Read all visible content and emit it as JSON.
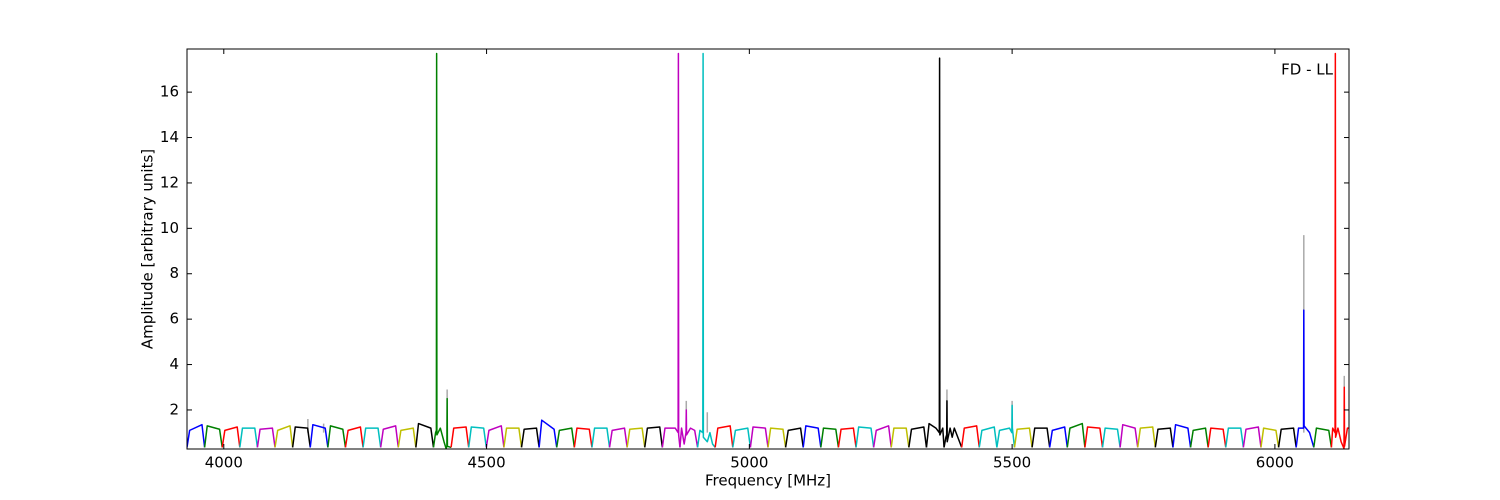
{
  "chart_data": {
    "type": "line",
    "xlabel": "Frequency [MHz]",
    "ylabel": "Amplitude [arbitrary units]",
    "annotation": "FD - LL",
    "xlim": [
      3930,
      6141
    ],
    "ylim": [
      0.28,
      17.9
    ],
    "xticks": [
      4000,
      4500,
      5000,
      5500,
      6000
    ],
    "yticks": [
      2,
      4,
      6,
      8,
      10,
      12,
      14,
      16
    ],
    "series": [
      {
        "color": "#aaaaaa",
        "x": [
          4160,
          4160,
          4160,
          4190,
          4190,
          4190,
          4425,
          4425,
          4425,
          4880,
          4880,
          4880,
          4920,
          4920,
          4920,
          5376,
          5376,
          5376,
          5500,
          5500,
          5500,
          6055,
          6055,
          6055,
          6132,
          6132
        ],
        "values": [
          1.0,
          1.6,
          null,
          1.0,
          1.4,
          null,
          1.0,
          2.9,
          null,
          1.0,
          2.4,
          null,
          1.0,
          1.9,
          null,
          1.0,
          2.9,
          null,
          1.0,
          2.4,
          null,
          1.0,
          9.7,
          null,
          1.0,
          3.5
        ]
      },
      {
        "color": "#0000ff",
        "x": [
          3930,
          3935,
          3958.5,
          3963.5
        ],
        "values": [
          0.35,
          1.1,
          1.35,
          0.35
        ]
      },
      {
        "color": "#008000",
        "x": [
          3963.5,
          3968.5,
          3992,
          3997
        ],
        "values": [
          0.35,
          1.3,
          1.15,
          0.35
        ]
      },
      {
        "color": "#ff0000",
        "x": [
          3997,
          4002,
          4025.5,
          4030.5
        ],
        "values": [
          0.35,
          1.1,
          1.25,
          0.35
        ]
      },
      {
        "color": "#00bfbf",
        "x": [
          4030.5,
          4035.5,
          4059,
          4064
        ],
        "values": [
          0.35,
          1.2,
          1.2,
          0.35
        ]
      },
      {
        "color": "#bf00bf",
        "x": [
          4064,
          4069,
          4092.5,
          4097.5
        ],
        "values": [
          0.35,
          1.15,
          1.2,
          0.35
        ]
      },
      {
        "color": "#bfbf00",
        "x": [
          4097.5,
          4102.5,
          4126,
          4131
        ],
        "values": [
          0.35,
          1.1,
          1.3,
          0.35
        ]
      },
      {
        "color": "#000000",
        "x": [
          4131,
          4136,
          4159.5,
          4164.5
        ],
        "values": [
          0.35,
          1.25,
          1.2,
          0.35
        ]
      },
      {
        "color": "#0000ff",
        "x": [
          4164.5,
          4169.5,
          4193,
          4198
        ],
        "values": [
          0.35,
          1.35,
          1.2,
          0.35
        ]
      },
      {
        "color": "#008000",
        "x": [
          4198,
          4203,
          4226.5,
          4231.5
        ],
        "values": [
          0.35,
          1.3,
          1.15,
          0.35
        ]
      },
      {
        "color": "#ff0000",
        "x": [
          4231.5,
          4236.5,
          4260,
          4265
        ],
        "values": [
          0.35,
          1.1,
          1.25,
          0.35
        ]
      },
      {
        "color": "#00bfbf",
        "x": [
          4265,
          4270,
          4293.5,
          4298.5
        ],
        "values": [
          0.35,
          1.2,
          1.2,
          0.35
        ]
      },
      {
        "color": "#bf00bf",
        "x": [
          4298.5,
          4303.5,
          4327,
          4332
        ],
        "values": [
          0.35,
          1.15,
          1.3,
          0.35
        ]
      },
      {
        "color": "#bfbf00",
        "x": [
          4332,
          4337,
          4360.5,
          4365.5
        ],
        "values": [
          0.35,
          1.1,
          1.2,
          0.35
        ]
      },
      {
        "color": "#000000",
        "x": [
          4365.5,
          4370.5,
          4394,
          4399
        ],
        "values": [
          0.35,
          1.4,
          1.2,
          0.35
        ]
      },
      {
        "color": "#008000",
        "x": [
          4399,
          4403,
          4404.5,
          4405,
          4405.5,
          4412,
          4419,
          4423,
          4424.5,
          4425,
          4425.5,
          4432.5
        ],
        "values": [
          0.35,
          1.0,
          1.1,
          17.7,
          0.9,
          1.2,
          0.6,
          0.3,
          0.4,
          2.5,
          0.4,
          0.35
        ]
      },
      {
        "color": "#ff0000",
        "x": [
          4432.5,
          4437.5,
          4461,
          4466
        ],
        "values": [
          0.35,
          1.2,
          1.25,
          0.35
        ]
      },
      {
        "color": "#00bfbf",
        "x": [
          4466,
          4471,
          4494.5,
          4499.5
        ],
        "values": [
          0.35,
          1.25,
          1.2,
          0.35
        ]
      },
      {
        "color": "#bf00bf",
        "x": [
          4499.5,
          4504.5,
          4528,
          4533
        ],
        "values": [
          0.35,
          1.1,
          1.3,
          0.35
        ]
      },
      {
        "color": "#bfbf00",
        "x": [
          4533,
          4538,
          4561.5,
          4566.5
        ],
        "values": [
          0.35,
          1.2,
          1.2,
          0.35
        ]
      },
      {
        "color": "#000000",
        "x": [
          4566.5,
          4571.5,
          4595,
          4600
        ],
        "values": [
          0.35,
          1.15,
          1.2,
          0.35
        ]
      },
      {
        "color": "#0000ff",
        "x": [
          4600,
          4605,
          4628.5,
          4633.5
        ],
        "values": [
          0.35,
          1.55,
          1.15,
          0.35
        ]
      },
      {
        "color": "#008000",
        "x": [
          4633.5,
          4638.5,
          4662,
          4667
        ],
        "values": [
          0.35,
          1.1,
          1.2,
          0.35
        ]
      },
      {
        "color": "#ff0000",
        "x": [
          4667,
          4672,
          4695.5,
          4700.5
        ],
        "values": [
          0.35,
          1.2,
          1.15,
          0.35
        ]
      },
      {
        "color": "#00bfbf",
        "x": [
          4700.5,
          4705.5,
          4729,
          4734
        ],
        "values": [
          0.35,
          1.2,
          1.2,
          0.35
        ]
      },
      {
        "color": "#bf00bf",
        "x": [
          4734,
          4739,
          4762.5,
          4767.5
        ],
        "values": [
          0.35,
          1.1,
          1.2,
          0.35
        ]
      },
      {
        "color": "#bfbf00",
        "x": [
          4767.5,
          4772.5,
          4796,
          4801
        ],
        "values": [
          0.35,
          1.15,
          1.2,
          0.35
        ]
      },
      {
        "color": "#000000",
        "x": [
          4801,
          4806,
          4829.5,
          4834.5
        ],
        "values": [
          0.35,
          1.2,
          1.25,
          0.35
        ]
      },
      {
        "color": "#bf00bf",
        "x": [
          4834.5,
          4839.5,
          4859,
          4864.5,
          4865,
          4865.5,
          4868
        ],
        "values": [
          0.35,
          1.2,
          1.2,
          1.0,
          17.7,
          0.9,
          0.35
        ]
      },
      {
        "color": "#bf00bf",
        "x": [
          4868,
          4871,
          4876,
          4879.5,
          4880,
          4880.5,
          4888,
          4896,
          4901.5
        ],
        "values": [
          0.35,
          1.2,
          0.5,
          1.0,
          2.0,
          0.9,
          1.2,
          1.1,
          0.35
        ]
      },
      {
        "color": "#00bfbf",
        "x": [
          4901.5,
          4906,
          4911.5,
          4912,
          4912.5,
          4920,
          4925,
          4930,
          4935
        ],
        "values": [
          0.35,
          1.1,
          1.0,
          17.7,
          0.8,
          0.6,
          1.0,
          0.5,
          0.35
        ]
      },
      {
        "color": "#ff0000",
        "x": [
          4935,
          4940,
          4963.5,
          4968.5
        ],
        "values": [
          0.35,
          1.2,
          1.3,
          0.35
        ]
      },
      {
        "color": "#00bfbf",
        "x": [
          4968.5,
          4973.5,
          4997,
          5002
        ],
        "values": [
          0.35,
          1.1,
          1.2,
          0.35
        ]
      },
      {
        "color": "#bf00bf",
        "x": [
          5002,
          5007,
          5030.5,
          5035.5
        ],
        "values": [
          0.35,
          1.25,
          1.2,
          0.35
        ]
      },
      {
        "color": "#bfbf00",
        "x": [
          5035.5,
          5040.5,
          5064,
          5069
        ],
        "values": [
          0.35,
          1.2,
          1.15,
          0.35
        ]
      },
      {
        "color": "#000000",
        "x": [
          5069,
          5074,
          5097.5,
          5102.5
        ],
        "values": [
          0.35,
          1.1,
          1.2,
          0.35
        ]
      },
      {
        "color": "#0000ff",
        "x": [
          5102.5,
          5107.5,
          5131,
          5136
        ],
        "values": [
          0.35,
          1.3,
          1.2,
          0.35
        ]
      },
      {
        "color": "#008000",
        "x": [
          5136,
          5141,
          5164.5,
          5169.5
        ],
        "values": [
          0.35,
          1.2,
          1.15,
          0.35
        ]
      },
      {
        "color": "#ff0000",
        "x": [
          5169.5,
          5174.5,
          5198,
          5203
        ],
        "values": [
          0.35,
          1.15,
          1.2,
          0.35
        ]
      },
      {
        "color": "#00bfbf",
        "x": [
          5203,
          5208,
          5231.5,
          5236.5
        ],
        "values": [
          0.35,
          1.25,
          1.2,
          0.35
        ]
      },
      {
        "color": "#bf00bf",
        "x": [
          5236.5,
          5241.5,
          5265,
          5270
        ],
        "values": [
          0.35,
          1.1,
          1.3,
          0.35
        ]
      },
      {
        "color": "#bfbf00",
        "x": [
          5270,
          5275,
          5298.5,
          5303.5
        ],
        "values": [
          0.35,
          1.2,
          1.2,
          0.35
        ]
      },
      {
        "color": "#000000",
        "x": [
          5303.5,
          5308.5,
          5332,
          5337
        ],
        "values": [
          0.35,
          1.15,
          1.25,
          0.35
        ]
      },
      {
        "color": "#000000",
        "x": [
          5337,
          5342,
          5355,
          5361.5,
          5362,
          5362.5,
          5368,
          5370.5
        ],
        "values": [
          0.35,
          1.4,
          1.2,
          1.0,
          17.5,
          0.9,
          1.2,
          0.35
        ]
      },
      {
        "color": "#000000",
        "x": [
          5370.5,
          5374,
          5375.5,
          5376,
          5376.5,
          5382,
          5386,
          5390,
          5404
        ],
        "values": [
          0.35,
          0.8,
          0.9,
          2.4,
          0.6,
          1.2,
          0.8,
          1.2,
          0.35
        ]
      },
      {
        "color": "#ff0000",
        "x": [
          5404,
          5409,
          5432.5,
          5437.5
        ],
        "values": [
          0.35,
          1.2,
          1.3,
          0.35
        ]
      },
      {
        "color": "#00bfbf",
        "x": [
          5437.5,
          5442.5,
          5466,
          5471
        ],
        "values": [
          0.35,
          1.1,
          1.25,
          0.35
        ]
      },
      {
        "color": "#00bfbf",
        "x": [
          5471,
          5476,
          5495,
          5499.5,
          5500,
          5500.5,
          5504.5
        ],
        "values": [
          0.35,
          1.1,
          1.2,
          1.0,
          2.2,
          1.2,
          0.35
        ]
      },
      {
        "color": "#bfbf00",
        "x": [
          5504.5,
          5509.5,
          5533,
          5538
        ],
        "values": [
          0.35,
          1.15,
          1.2,
          0.35
        ]
      },
      {
        "color": "#000000",
        "x": [
          5538,
          5543,
          5566.5,
          5571.5
        ],
        "values": [
          0.35,
          1.2,
          1.2,
          0.35
        ]
      },
      {
        "color": "#0000ff",
        "x": [
          5571.5,
          5576.5,
          5600,
          5605
        ],
        "values": [
          0.35,
          1.1,
          1.25,
          0.35
        ]
      },
      {
        "color": "#008000",
        "x": [
          5605,
          5610,
          5633.5,
          5638.5
        ],
        "values": [
          0.35,
          1.2,
          1.4,
          0.35
        ]
      },
      {
        "color": "#ff0000",
        "x": [
          5638.5,
          5643.5,
          5667,
          5672
        ],
        "values": [
          0.35,
          1.25,
          1.2,
          0.35
        ]
      },
      {
        "color": "#00bfbf",
        "x": [
          5672,
          5677,
          5700.5,
          5705.5
        ],
        "values": [
          0.35,
          1.2,
          1.15,
          0.35
        ]
      },
      {
        "color": "#bf00bf",
        "x": [
          5705.5,
          5710.5,
          5734,
          5739
        ],
        "values": [
          0.35,
          1.35,
          1.2,
          0.35
        ]
      },
      {
        "color": "#bfbf00",
        "x": [
          5739,
          5744,
          5767.5,
          5772.5
        ],
        "values": [
          0.35,
          1.2,
          1.25,
          0.35
        ]
      },
      {
        "color": "#000000",
        "x": [
          5772.5,
          5777.5,
          5801,
          5806
        ],
        "values": [
          0.35,
          1.15,
          1.2,
          0.35
        ]
      },
      {
        "color": "#0000ff",
        "x": [
          5806,
          5811,
          5834.5,
          5839.5
        ],
        "values": [
          0.35,
          1.35,
          1.2,
          0.35
        ]
      },
      {
        "color": "#008000",
        "x": [
          5839.5,
          5844.5,
          5868,
          5873
        ],
        "values": [
          0.35,
          1.1,
          1.2,
          0.35
        ]
      },
      {
        "color": "#ff0000",
        "x": [
          5873,
          5878,
          5901.5,
          5906.5
        ],
        "values": [
          0.35,
          1.2,
          1.15,
          0.35
        ]
      },
      {
        "color": "#00bfbf",
        "x": [
          5906.5,
          5911.5,
          5935,
          5940
        ],
        "values": [
          0.35,
          1.2,
          1.2,
          0.35
        ]
      },
      {
        "color": "#bf00bf",
        "x": [
          5940,
          5945,
          5968.5,
          5973.5
        ],
        "values": [
          0.35,
          1.15,
          1.25,
          0.35
        ]
      },
      {
        "color": "#bfbf00",
        "x": [
          5973.5,
          5978.5,
          6002,
          6007
        ],
        "values": [
          0.35,
          1.2,
          1.1,
          0.35
        ]
      },
      {
        "color": "#000000",
        "x": [
          6007,
          6012,
          6035.5,
          6040.5
        ],
        "values": [
          0.35,
          1.15,
          1.2,
          0.35
        ]
      },
      {
        "color": "#0000ff",
        "x": [
          6040.5,
          6045,
          6054.5,
          6055,
          6055.5,
          6066,
          6074
        ],
        "values": [
          0.35,
          1.2,
          1.2,
          6.4,
          1.3,
          1.0,
          0.35
        ]
      },
      {
        "color": "#008000",
        "x": [
          6074,
          6079,
          6102.5,
          6107.5
        ],
        "values": [
          0.35,
          1.2,
          1.1,
          0.35
        ]
      },
      {
        "color": "#ff0000",
        "x": [
          6107.5,
          6110,
          6114.5,
          6115,
          6115.5,
          6120,
          6126,
          6131.5,
          6132,
          6132.5,
          6138,
          6141
        ],
        "values": [
          0.35,
          1.2,
          1.0,
          17.7,
          0.8,
          1.2,
          0.6,
          0.3,
          3.0,
          0.4,
          1.2,
          1.2
        ]
      }
    ]
  }
}
